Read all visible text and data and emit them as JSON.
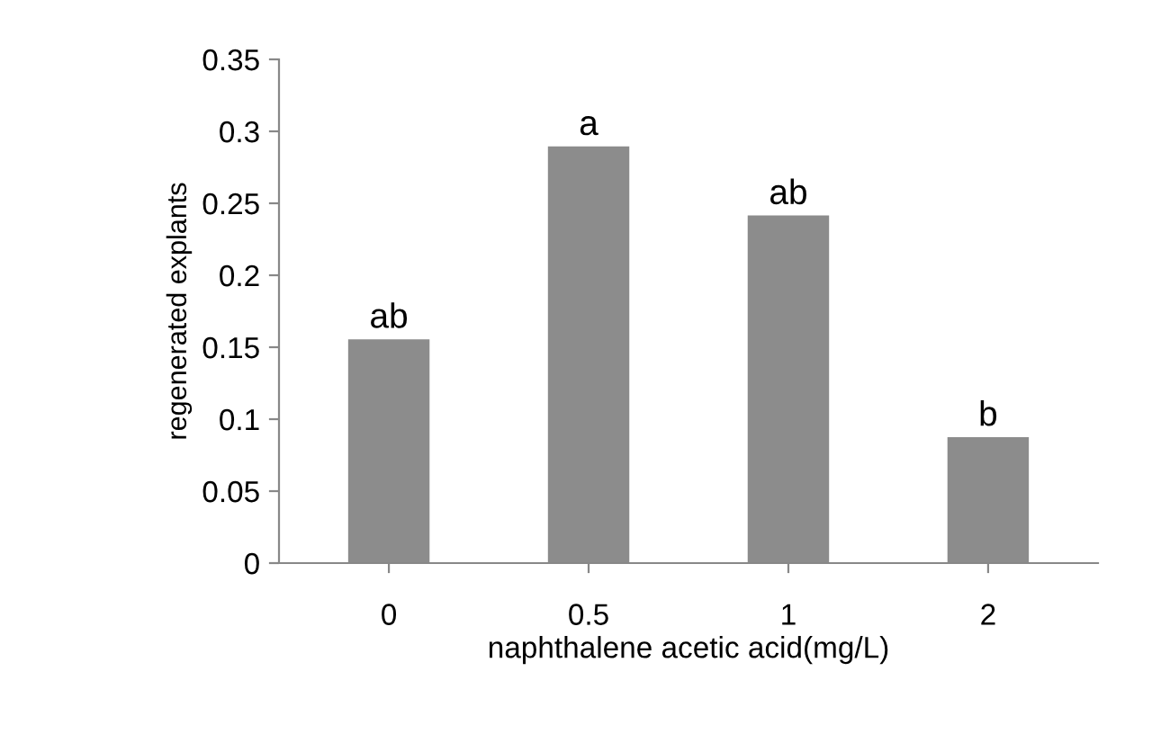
{
  "chart_data": {
    "type": "bar",
    "xlabel": "naphthalene acetic acid(mg/L)",
    "ylabel": "regenerated explants",
    "categories": [
      "0",
      "0.5",
      "1",
      "2"
    ],
    "values": [
      0.155,
      0.289,
      0.241,
      0.087
    ],
    "color": "#8c8c8c",
    "ylim": [
      0,
      0.35
    ],
    "yticks": [
      0,
      0.05,
      0.1,
      0.15,
      0.2,
      0.25,
      0.3,
      0.35
    ],
    "grid": false,
    "annotations": [
      {
        "text": "ab",
        "x": "0",
        "y": 0.155
      },
      {
        "text": "a",
        "x": "0.5",
        "y": 0.289
      },
      {
        "text": "ab",
        "x": "1",
        "y": 0.241
      },
      {
        "text": "b",
        "x": "2",
        "y": 0.087
      }
    ]
  }
}
